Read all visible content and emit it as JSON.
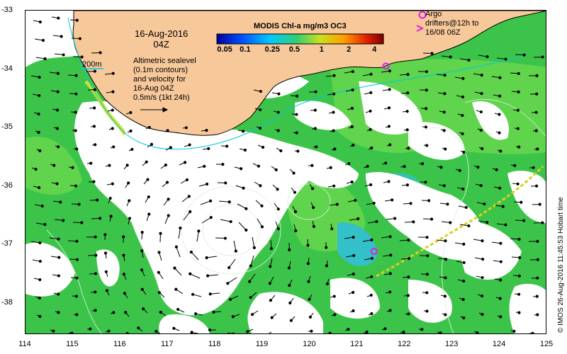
{
  "map": {
    "date_line1": "16-Aug-2016",
    "date_line2": "04Z",
    "depth_label": "200m",
    "altimetric_lines": [
      "Altimetric sealevel",
      "(0.1m contours)",
      "and velocity for",
      "16-Aug 04Z",
      "0.5m/s (1kt 24h)"
    ],
    "argo_lines": [
      "Argo",
      "drifters@12h to",
      "16/08 06Z"
    ],
    "colorbar_title": "MODIS Chl-a mg/m3 OC3",
    "colorbar_ticks": [
      "0.05",
      "0.1",
      "0.25",
      "0.5",
      "1",
      "2",
      "4"
    ],
    "credit": "© IMOS 26-Aug-2016 11:45:53 Hobart time",
    "lon_ticks": [
      "114",
      "115",
      "116",
      "117",
      "118",
      "119",
      "120",
      "121",
      "122",
      "123",
      "124",
      "125"
    ],
    "lat_ticks": [
      "-33",
      "-34",
      "-35",
      "-36",
      "-37",
      "-38"
    ],
    "lon_range": [
      114,
      125
    ],
    "lat_range": [
      -38.55,
      -33
    ],
    "colors": {
      "land": "#f7c89a",
      "ocean_chl": "#3cc44a",
      "ocean_chl_light": "#60d24a",
      "shelf_yellow": "#c8e030",
      "cloud": "#ffffff",
      "argo": "#e020e0",
      "contour_200m": "#00c8e0"
    },
    "argo_drifters": [
      {
        "lon": 121.6,
        "lat": -33.95
      },
      {
        "lon": 121.35,
        "lat": -37.12
      }
    ]
  }
}
